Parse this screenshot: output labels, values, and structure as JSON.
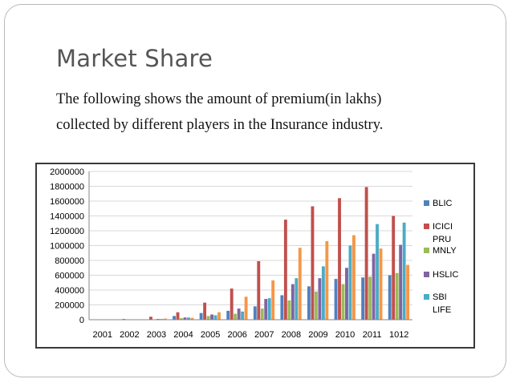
{
  "slide": {
    "title": "Market Share",
    "subtitle_line1": "The following shows the amount of premium(in lakhs)",
    "subtitle_line2": "collected by different players in the Insurance industry."
  },
  "chart_data": {
    "type": "bar",
    "title": "",
    "xlabel": "",
    "ylabel": "",
    "categories": [
      "2001",
      "2002",
      "2003",
      "2004",
      "2005",
      "2006",
      "2007",
      "2008",
      "2009",
      "2010",
      "2011",
      "1012"
    ],
    "ylim": [
      0,
      2000000
    ],
    "yticks": [
      "2000000",
      "1800000",
      "1600000",
      "1400000",
      "1200000",
      "1000000",
      "800000",
      "600000",
      "400000",
      "200000",
      "0"
    ],
    "legend_position": "right",
    "grid": true,
    "series": [
      {
        "name": "BLIC",
        "color": "#4f81bd",
        "values": [
          2000,
          2000,
          5000,
          50000,
          90000,
          120000,
          180000,
          330000,
          450000,
          550000,
          570000,
          600000
        ]
      },
      {
        "name": "ICICI PRU",
        "color": "#c0504d",
        "values": [
          5000,
          10000,
          40000,
          100000,
          230000,
          420000,
          790000,
          1350000,
          1530000,
          1640000,
          1790000,
          1400000
        ]
      },
      {
        "name": "MNLY",
        "color": "#9bbb59",
        "values": [
          1000,
          2000,
          5000,
          20000,
          50000,
          80000,
          150000,
          260000,
          380000,
          480000,
          580000,
          630000
        ]
      },
      {
        "name": "HSLIC",
        "color": "#8064a2",
        "values": [
          1000,
          2000,
          10000,
          30000,
          70000,
          150000,
          280000,
          480000,
          560000,
          700000,
          890000,
          1010000
        ]
      },
      {
        "name": "SBI LIFE",
        "color": "#4bacc6",
        "values": [
          1000,
          3000,
          10000,
          30000,
          60000,
          110000,
          290000,
          560000,
          720000,
          1000000,
          1290000,
          1310000
        ]
      },
      {
        "name": "",
        "color": "#f79646",
        "values": [
          2000,
          5000,
          15000,
          25000,
          100000,
          310000,
          530000,
          970000,
          1060000,
          1140000,
          960000,
          740000
        ]
      }
    ]
  }
}
